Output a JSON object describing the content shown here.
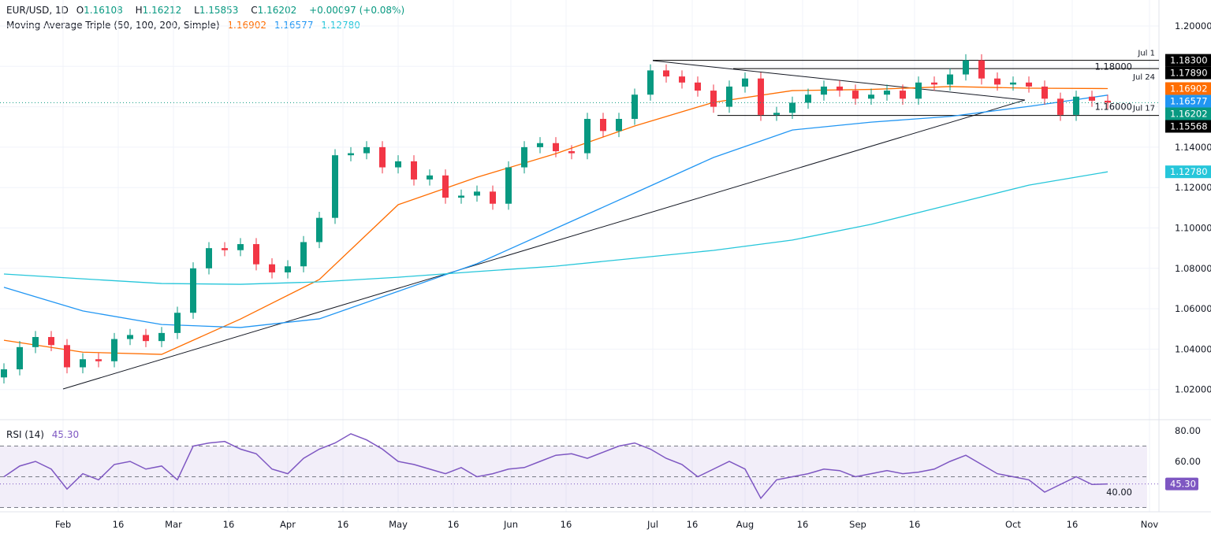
{
  "header": {
    "symbol": "EUR/USD, 1D",
    "open_label": "O",
    "open": "1.16108",
    "high_label": "H",
    "high": "1.16212",
    "low_label": "L",
    "low": "1.15853",
    "close_label": "C",
    "close": "1.16202",
    "change": "+0.00097 (+0.08%)"
  },
  "ma_legend": {
    "title": "Moving Average Triple (50, 100, 200, Simple)",
    "ma50": "1.16902",
    "ma100": "1.16577",
    "ma200": "1.12780"
  },
  "rsi_legend": {
    "title": "RSI (14)",
    "value": "45.30"
  },
  "colors": {
    "up": "#089981",
    "down": "#f23645",
    "ma50": "#ff6d00",
    "ma100": "#2196f3",
    "ma200": "#26c6da",
    "rsi": "#7e57c2",
    "tag_black": "#000000"
  },
  "chart_data": [
    {
      "type": "candlestick",
      "ylim": [
        1.0,
        1.2
      ],
      "yticks": [
        "1.20000",
        "1.18000",
        "1.16000",
        "1.14000",
        "1.12000",
        "1.10000",
        "1.08000",
        "1.06000",
        "1.04000",
        "1.02000"
      ],
      "xticks": [
        "Feb",
        "16",
        "Mar",
        "16",
        "Apr",
        "16",
        "May",
        "16",
        "Jun",
        "16",
        "Jul",
        "16",
        "Aug",
        "16",
        "Sep",
        "16",
        "Oct",
        "16",
        "Nov"
      ],
      "closes": [
        1.03,
        1.041,
        1.046,
        1.042,
        1.031,
        1.035,
        1.034,
        1.045,
        1.047,
        1.044,
        1.048,
        1.058,
        1.08,
        1.09,
        1.089,
        1.092,
        1.082,
        1.078,
        1.081,
        1.093,
        1.105,
        1.136,
        1.137,
        1.14,
        1.13,
        1.133,
        1.124,
        1.126,
        1.115,
        1.116,
        1.118,
        1.112,
        1.13,
        1.14,
        1.142,
        1.138,
        1.137,
        1.154,
        1.148,
        1.154,
        1.166,
        1.178,
        1.175,
        1.172,
        1.168,
        1.16,
        1.17,
        1.174,
        1.156,
        1.157,
        1.162,
        1.166,
        1.17,
        1.168,
        1.164,
        1.166,
        1.168,
        1.164,
        1.172,
        1.171,
        1.176,
        1.183,
        1.174,
        1.171,
        1.172,
        1.17,
        1.164,
        1.156,
        1.165,
        1.163,
        1.16202
      ],
      "series": [
        {
          "name": "MA 50",
          "values": [
            1.0444,
            1.0385,
            1.0374,
            1.0549,
            1.0745,
            1.1115,
            1.1251,
            1.1368,
            1.1505,
            1.1622,
            1.168,
            1.1686,
            1.17,
            1.1692,
            1.16902
          ]
        },
        {
          "name": "MA 100",
          "values": [
            1.0706,
            1.0589,
            1.0522,
            1.0507,
            1.055,
            1.0686,
            1.0823,
            1.0998,
            1.1173,
            1.1349,
            1.1485,
            1.1524,
            1.1552,
            1.1602,
            1.16577
          ]
        },
        {
          "name": "MA 200",
          "values": [
            1.0772,
            1.0748,
            1.0725,
            1.0721,
            1.0733,
            1.0756,
            1.0784,
            1.0811,
            1.085,
            1.0889,
            1.094,
            1.1018,
            1.1115,
            1.1212,
            1.1278
          ]
        }
      ],
      "levels": [
        {
          "label": "Jul 1",
          "price": 1.183,
          "tag": "1.18300"
        },
        {
          "label": "Jul 24",
          "price": 1.1789,
          "tag": "1.17890"
        },
        {
          "label": "Jul 17",
          "price": 1.15568,
          "tag": "1.15568"
        }
      ],
      "price_tags": {
        "ma50": "1.16902",
        "ma100": "1.16577",
        "close": "1.16202",
        "ma200": "1.12780"
      }
    },
    {
      "type": "line",
      "title": "RSI (14)",
      "ylim": [
        25,
        85
      ],
      "yticks": [
        "80.00",
        "60.00",
        "40.00"
      ],
      "bands": [
        70,
        50,
        30
      ],
      "values": [
        50,
        57,
        60,
        55,
        42,
        52,
        48,
        58,
        60,
        55,
        57,
        48,
        70,
        72,
        73,
        68,
        65,
        55,
        52,
        62,
        68,
        72,
        78,
        74,
        68,
        60,
        58,
        55,
        52,
        56,
        50,
        52,
        55,
        56,
        60,
        64,
        65,
        62,
        66,
        70,
        72,
        68,
        62,
        58,
        50,
        55,
        60,
        55,
        36,
        48,
        50,
        52,
        55,
        54,
        50,
        52,
        54,
        52,
        53,
        55,
        60,
        64,
        58,
        52,
        50,
        48,
        40,
        45,
        50,
        45,
        45.3
      ],
      "tag": "45.30"
    }
  ]
}
